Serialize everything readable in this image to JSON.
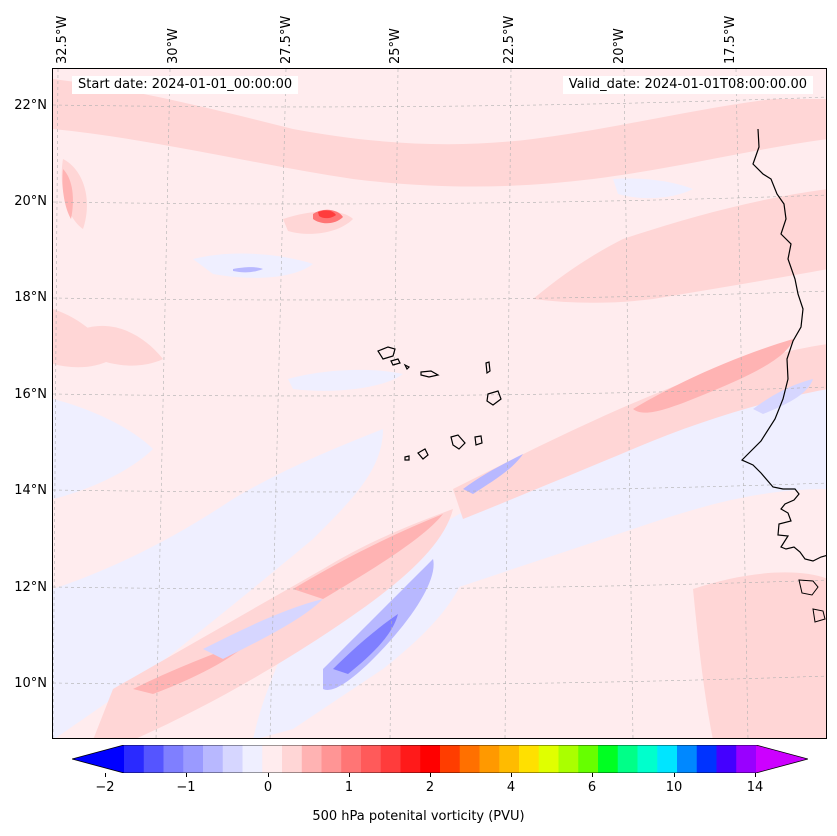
{
  "map": {
    "info_left": "Start date: 2024-01-01_00:00:00",
    "info_right": "Valid_date: 2024-01-01T08:00:00.00",
    "lon_labels": [
      "32.5°W",
      "30°W",
      "27.5°W",
      "25°W",
      "22.5°W",
      "20°W",
      "17.5°W"
    ],
    "lat_labels": [
      "22°N",
      "20°N",
      "18°N",
      "16°N",
      "14°N",
      "12°N",
      "10°N"
    ],
    "extent": {
      "lon_min": -33.0,
      "lon_max": -15.5,
      "lat_min": 9.0,
      "lat_max": 22.8
    },
    "gridlines": true,
    "features": [
      "coastline",
      "Cape Verde islands",
      "West African coast"
    ]
  },
  "colorbar": {
    "label": "500 hPa potenital vorticity (PVU)",
    "ticks": [
      "−2",
      "−1",
      "0",
      "1",
      "2",
      "4",
      "6",
      "10",
      "14"
    ],
    "extend": "both",
    "colors": [
      "#0000ff",
      "#2a2aff",
      "#5555ff",
      "#7f7fff",
      "#9a9aff",
      "#b8b8ff",
      "#d6d6ff",
      "#efefff",
      "#ffecee",
      "#ffd6d6",
      "#ffb3b3",
      "#ff9595",
      "#ff7575",
      "#ff5a5a",
      "#ff3c3c",
      "#ff1a1a",
      "#ff0000",
      "#ff3d00",
      "#ff7000",
      "#ff9900",
      "#ffbb00",
      "#ffe000",
      "#e0ff00",
      "#aaff00",
      "#66ff00",
      "#00ff22",
      "#00ff88",
      "#00ffcc",
      "#00e5ff",
      "#0088ff",
      "#0033ff",
      "#4400ff",
      "#9900ff",
      "#cc00ff"
    ]
  }
}
